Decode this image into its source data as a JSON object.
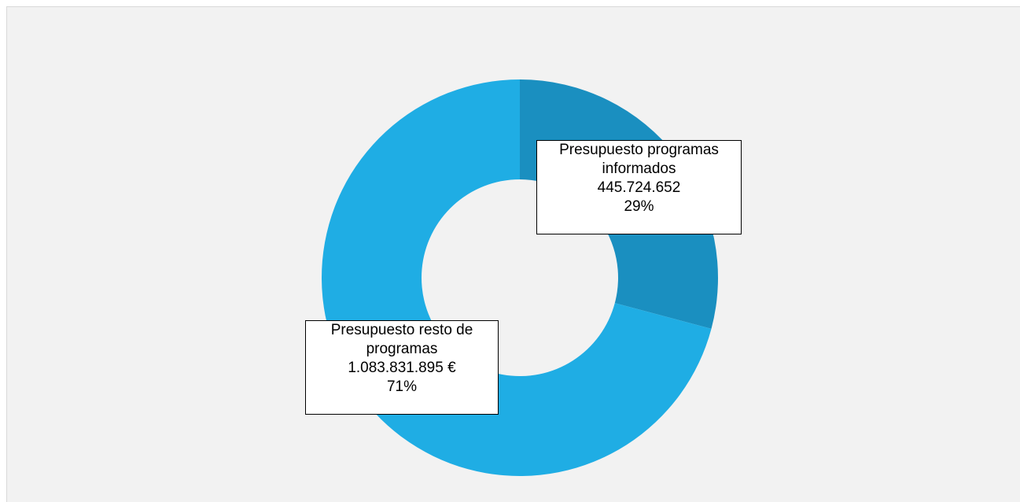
{
  "chart_data": {
    "type": "donut",
    "categories": [
      "Presupuesto programas informados",
      "Presupuesto resto de programas"
    ],
    "values": [
      445724652,
      1083831895
    ],
    "value_labels": [
      "445.724.652",
      "1.083.831.895 €"
    ],
    "percents": [
      29,
      71
    ],
    "percent_labels": [
      "29%",
      "71%"
    ],
    "colors": [
      "#1a8fc0",
      "#1fade4"
    ]
  }
}
